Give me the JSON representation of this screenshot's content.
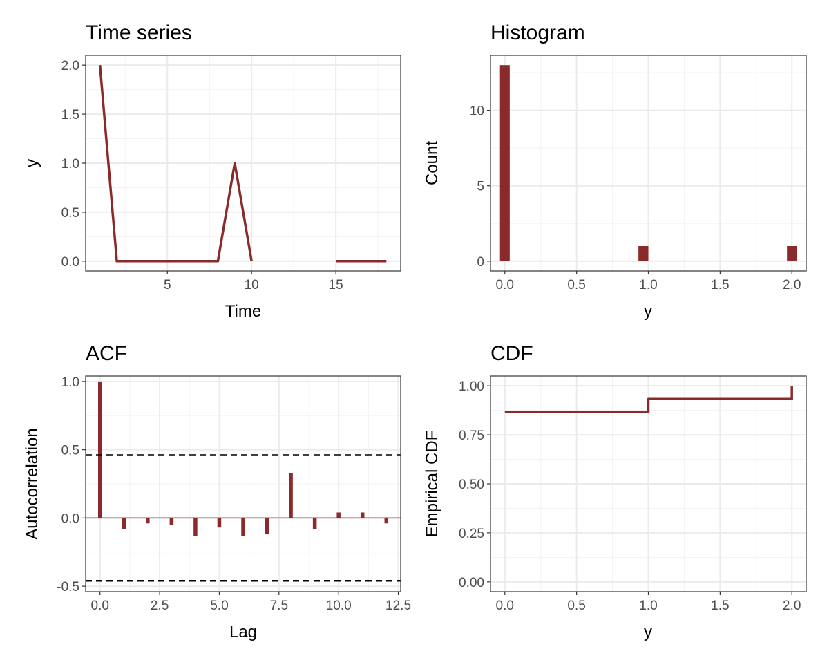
{
  "series_color": "#8b2a2a",
  "chart_data": [
    {
      "id": "ts",
      "type": "line",
      "title": "Time series",
      "xlabel": "Time",
      "ylabel": "y",
      "x": [
        1,
        2,
        3,
        4,
        5,
        6,
        7,
        8,
        9,
        10,
        11,
        12,
        13,
        14,
        15,
        16,
        17,
        18
      ],
      "y": [
        2,
        0,
        0,
        0,
        0,
        0,
        0,
        0,
        1,
        0,
        null,
        null,
        null,
        null,
        0,
        0,
        0,
        0
      ],
      "xlim": [
        0.15,
        18.85
      ],
      "ylim": [
        -0.1,
        2.1
      ],
      "xticks": [
        5,
        10,
        15
      ],
      "xtick_labels": [
        "5",
        "10",
        "15"
      ],
      "yticks": [
        0,
        0.5,
        1,
        1.5,
        2
      ],
      "ytick_labels": [
        "0.0",
        "0.5",
        "1.0",
        "1.5",
        "2.0"
      ],
      "grid": true
    },
    {
      "id": "hist",
      "type": "bar",
      "title": "Histogram",
      "xlabel": "y",
      "ylabel": "Count",
      "bins": [
        {
          "x0": -0.034,
          "x1": 0.034,
          "count": 13
        },
        {
          "x0": 0.931,
          "x1": 1.0,
          "count": 1
        },
        {
          "x0": 1.966,
          "x1": 2.034,
          "count": 1
        }
      ],
      "xlim": [
        -0.1,
        2.1
      ],
      "ylim": [
        -0.65,
        13.65
      ],
      "xticks": [
        0,
        0.5,
        1,
        1.5,
        2
      ],
      "xtick_labels": [
        "0.0",
        "0.5",
        "1.0",
        "1.5",
        "2.0"
      ],
      "yticks": [
        0,
        5,
        10
      ],
      "ytick_labels": [
        "0",
        "5",
        "10"
      ],
      "grid": true
    },
    {
      "id": "acf",
      "type": "bar",
      "title": "ACF",
      "xlabel": "Lag",
      "ylabel": "Autocorrelation",
      "lags": [
        0,
        1,
        2,
        3,
        4,
        5,
        6,
        7,
        8,
        9,
        10,
        11,
        12
      ],
      "acf": [
        1.0,
        -0.08,
        -0.04,
        -0.05,
        -0.13,
        -0.07,
        -0.13,
        -0.12,
        0.33,
        -0.08,
        0.04,
        0.04,
        -0.04
      ],
      "confidence_bounds": [
        0.46,
        -0.46
      ],
      "xlim": [
        -0.6,
        12.6
      ],
      "ylim": [
        -0.54,
        1.04
      ],
      "xticks": [
        0,
        2.5,
        5,
        7.5,
        10,
        12.5
      ],
      "xtick_labels": [
        "0.0",
        "2.5",
        "5.0",
        "7.5",
        "10.0",
        "12.5"
      ],
      "yticks": [
        -0.5,
        0,
        0.5,
        1
      ],
      "ytick_labels": [
        "-0.5",
        "0.0",
        "0.5",
        "1.0"
      ],
      "grid": true
    },
    {
      "id": "cdf",
      "type": "line",
      "title": "CDF",
      "xlabel": "y",
      "ylabel": "Empirical CDF",
      "x": [
        0,
        1,
        1,
        2,
        2
      ],
      "y": [
        0.867,
        0.867,
        0.933,
        0.933,
        1.0
      ],
      "xlim": [
        -0.1,
        2.1
      ],
      "ylim": [
        -0.05,
        1.05
      ],
      "xticks": [
        0,
        0.5,
        1,
        1.5,
        2
      ],
      "xtick_labels": [
        "0.0",
        "0.5",
        "1.0",
        "1.5",
        "2.0"
      ],
      "yticks": [
        0,
        0.25,
        0.5,
        0.75,
        1
      ],
      "ytick_labels": [
        "0.00",
        "0.25",
        "0.50",
        "0.75",
        "1.00"
      ],
      "grid": true
    }
  ]
}
